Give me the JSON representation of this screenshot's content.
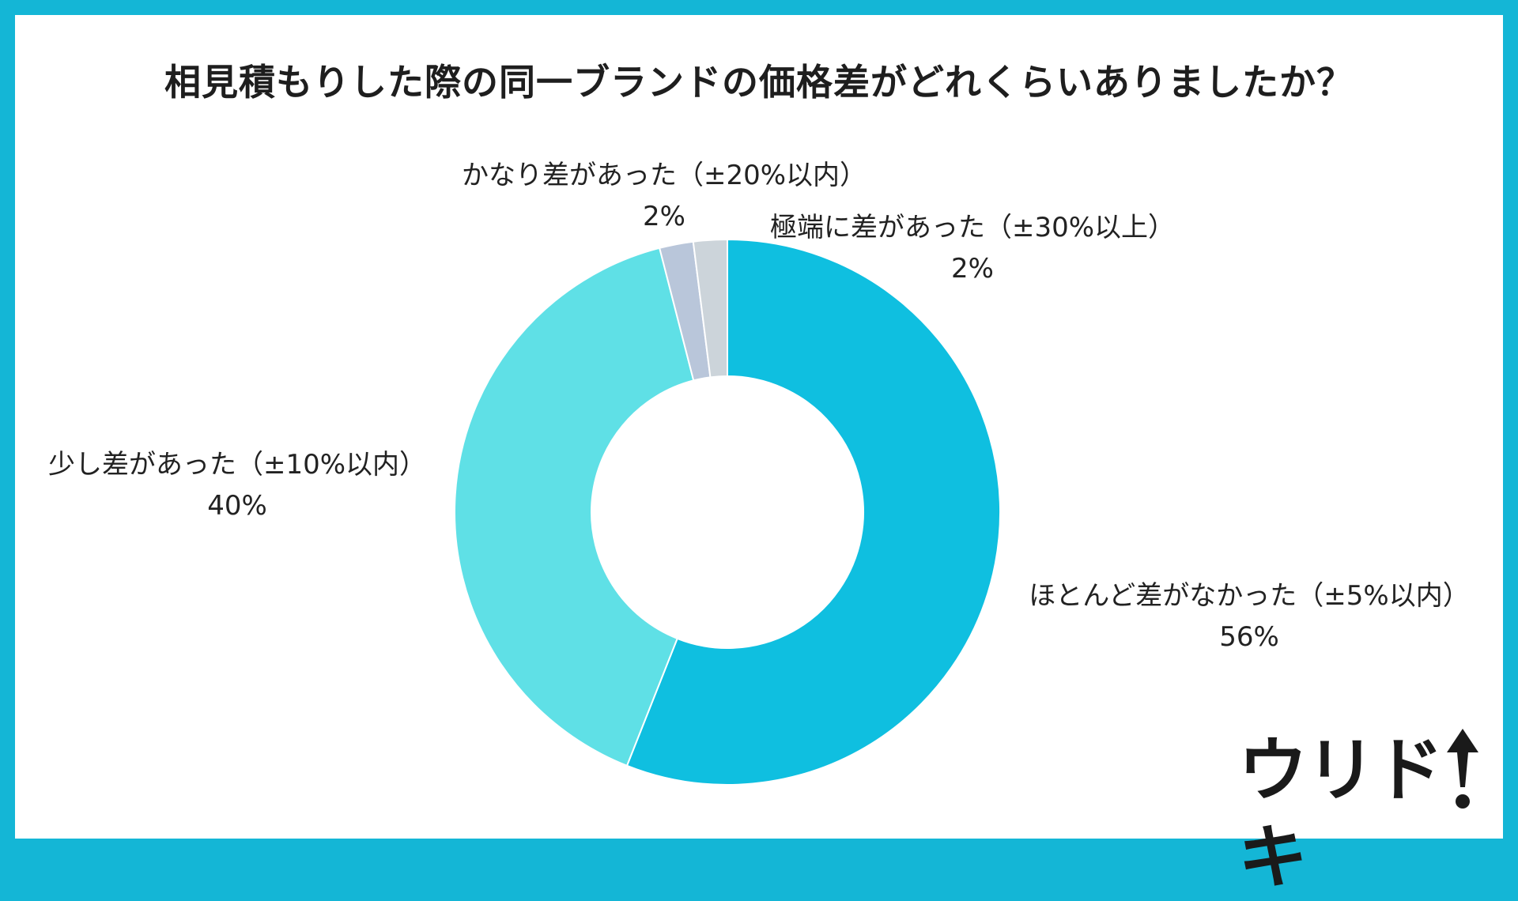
{
  "title": "相見積もりした際の同一ブランドの価格差がどれくらいありましたか？",
  "colors": {
    "frame": "#14b6d6",
    "background": "#ffffff"
  },
  "logo": {
    "text": "ウリドキ",
    "icon": "up-arrow-icon"
  },
  "chart_data": {
    "type": "pie",
    "donut": true,
    "start_angle_deg": 0,
    "direction": "clockwise",
    "slices": [
      {
        "label": "ほとんど差がなかった（±5%以内）",
        "value": 56,
        "value_label": "56%",
        "color": "#0fbfe0"
      },
      {
        "label": "少し差があった（±10%以内）",
        "value": 40,
        "value_label": "40%",
        "color": "#5fe0e6"
      },
      {
        "label": "かなり差があった（±20%以内）",
        "value": 2,
        "value_label": "2%",
        "color": "#b9c6da"
      },
      {
        "label": "極端に差があった（±30%以上）",
        "value": 2,
        "value_label": "2%",
        "color": "#ccd4da"
      }
    ]
  }
}
